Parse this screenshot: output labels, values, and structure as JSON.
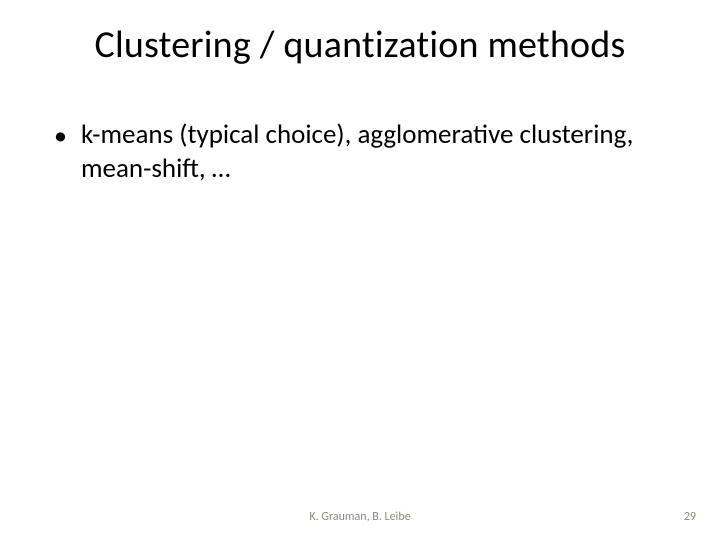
{
  "title": "Clustering / quantization methods",
  "bullets": [
    {
      "text": "k-means (typical choice), agglomerative clustering, mean-shift, …"
    }
  ],
  "footer": {
    "center": "K. Grauman, B. Leibe",
    "page": "29"
  },
  "colors": {
    "background": "#ffffff",
    "text": "#000000",
    "footer": "#8b8b7d"
  },
  "fontsizes": {
    "title": 38,
    "body": 27,
    "footer": 12
  }
}
